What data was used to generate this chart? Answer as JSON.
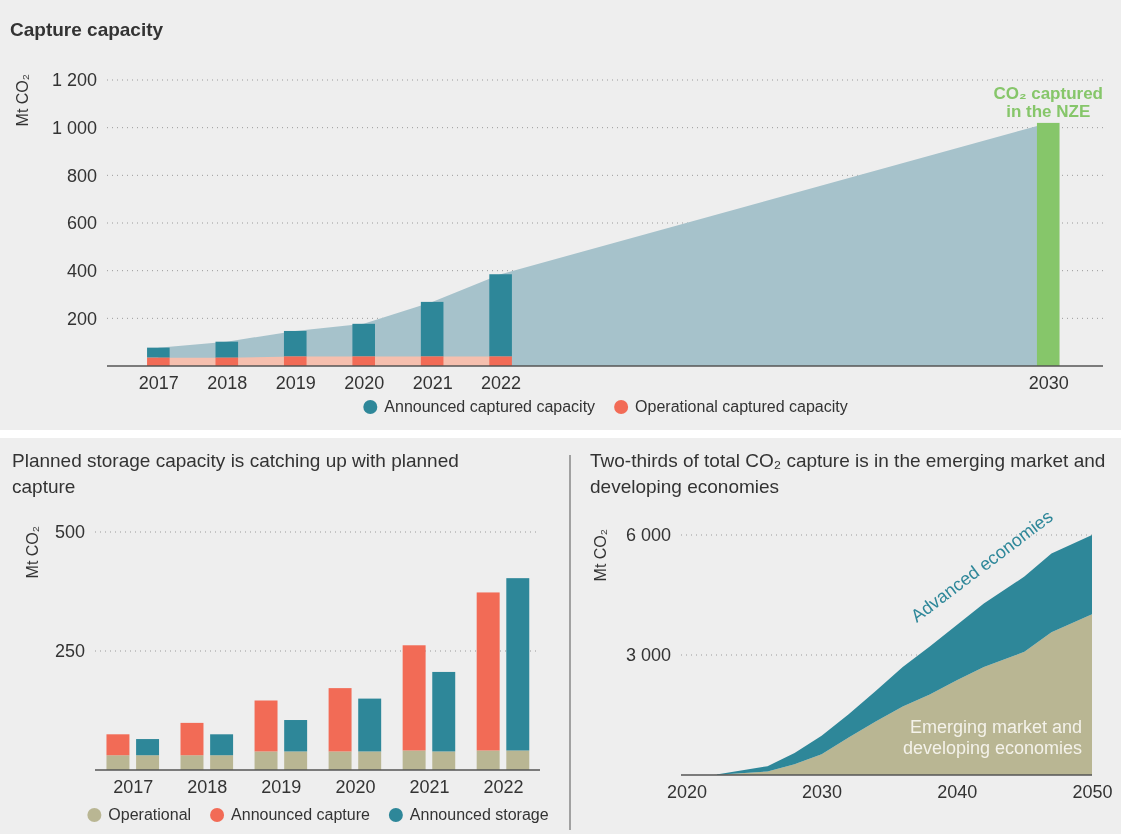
{
  "chart_data": [
    {
      "type": "bar",
      "title": "Capture capacity",
      "ylabel": "Mt CO₂",
      "xlim": [
        2016.25,
        2030.8
      ],
      "ylim": [
        0,
        1200
      ],
      "xticks": [
        2017,
        2018,
        2019,
        2020,
        2021,
        2022,
        2030
      ],
      "yticks": [
        200,
        400,
        600,
        800,
        {
          "value": 1000,
          "label": "1 000"
        },
        {
          "value": 1200,
          "label": "1 200"
        }
      ],
      "grid": "y",
      "legend": "bottom",
      "series": [
        {
          "type": "area",
          "color": "#a6c2cb",
          "x": [
            2017,
            2018,
            2019,
            2020,
            2021,
            2022,
            2030
          ],
          "values": [
            77,
            102,
            147,
            177,
            269,
            385,
            1020
          ]
        },
        {
          "type": "area",
          "color": "#f5bfae",
          "x": [
            2017,
            2018,
            2019,
            2020,
            2021,
            2022
          ],
          "values": [
            35,
            35,
            40,
            40,
            40,
            40
          ]
        },
        {
          "name": "Announced captured capacity",
          "color": "#2e8799",
          "x": [
            2017,
            2018,
            2019,
            2020,
            2021,
            2022
          ],
          "values": [
            42,
            67,
            107,
            137,
            229,
            345
          ],
          "base": [
            35,
            35,
            40,
            40,
            40,
            40
          ]
        },
        {
          "name": "Operational captured capacity",
          "color": "#f26b56",
          "x": [
            2017,
            2018,
            2019,
            2020,
            2021,
            2022
          ],
          "values": [
            35,
            35,
            40,
            40,
            40,
            40
          ]
        },
        {
          "color": "#86c66a",
          "x": [
            2030
          ],
          "values": [
            1020
          ]
        }
      ],
      "annotations": [
        {
          "text": "CO₂ captured in the NZE",
          "x": 2030,
          "y": 1020
        }
      ]
    },
    {
      "type": "bar",
      "title": "Planned storage capacity is catching up with planned capture",
      "ylabel": "Mt CO₂",
      "x": [
        2016.8,
        2017.2,
        2017.8,
        2018.2,
        2018.8,
        2019.2,
        2019.8,
        2020.2,
        2020.8,
        2021.2,
        2021.8,
        2022.2
      ],
      "xlim": [
        2016.49,
        2022.5
      ],
      "xticks": [
        2017,
        2018,
        2019,
        2020,
        2021,
        2022
      ],
      "ylim": [
        0,
        500
      ],
      "yticks": [
        250,
        500
      ],
      "grid": "y",
      "legend": "bottom",
      "stacked": true,
      "series": [
        {
          "name": "Operational",
          "color": "#b9b693",
          "values": [
            31,
            31,
            31,
            31,
            39,
            39,
            39,
            39,
            41,
            39,
            41,
            41
          ]
        },
        {
          "name": "Announced capture",
          "color": "#f26b56",
          "values": [
            44,
            null,
            68,
            null,
            107,
            null,
            133,
            null,
            221,
            null,
            332,
            null
          ]
        },
        {
          "name": "Announced storage",
          "color": "#2e8799",
          "values": [
            null,
            34,
            null,
            44,
            null,
            66,
            null,
            111,
            null,
            167,
            null,
            362
          ]
        }
      ]
    },
    {
      "type": "area",
      "title": "Two-thirds of total CO₂ capture is in the emerging market and developing economies",
      "ylabel": "Mt CO₂",
      "x": [
        2020,
        2022,
        2026,
        2028,
        2030,
        2032,
        2034,
        2036,
        2038,
        2040,
        2042,
        2045,
        2047,
        2050
      ],
      "xlim": [
        2019.6,
        2050
      ],
      "xticks": [
        2020,
        2030,
        2040,
        2050
      ],
      "ylim": [
        0,
        6000
      ],
      "yticks": [
        {
          "value": 3000,
          "label": "3 000"
        },
        {
          "value": 6000,
          "label": "6 000"
        }
      ],
      "grid": "y",
      "stacked": true,
      "series": [
        {
          "name": "Emerging market and developing economies",
          "color": "#b9b693",
          "values": [
            0,
            0,
            90,
            270,
            520,
            940,
            1340,
            1710,
            2010,
            2370,
            2700,
            3080,
            3570,
            4020
          ]
        },
        {
          "name": "Advanced economies",
          "color": "#2e8799",
          "values": [
            0,
            0,
            130,
            280,
            460,
            580,
            760,
            990,
            1200,
            1380,
            1590,
            1880,
            1970,
            1980
          ]
        }
      ]
    }
  ]
}
